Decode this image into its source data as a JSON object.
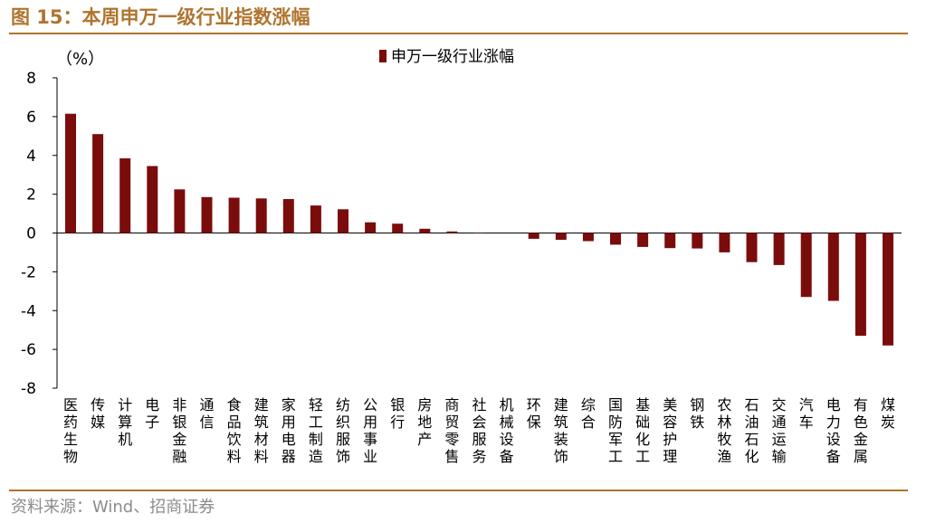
{
  "figure": {
    "title": "图 15：本周申万一级行业指数涨幅",
    "source": "资料来源：Wind、招商证券"
  },
  "chart_data": {
    "type": "bar",
    "title": "",
    "xlabel": "",
    "ylabel": "",
    "unit_label": "（%）",
    "ylim": [
      -8,
      8
    ],
    "yticks": [
      8,
      6,
      4,
      2,
      0,
      -2,
      -4,
      -6,
      -8
    ],
    "grid": false,
    "legend_position": "top-center",
    "bar_color": "#7b0c0c",
    "categories": [
      "医药生物",
      "传媒",
      "计算机",
      "电子",
      "非银金融",
      "通信",
      "食品饮料",
      "建筑材料",
      "家用电器",
      "轻工制造",
      "纺织服饰",
      "公用事业",
      "银行",
      "房地产",
      "商贸零售",
      "社会服务",
      "机械设备",
      "环保",
      "建筑装饰",
      "综合",
      "国防军工",
      "基础化工",
      "美容护理",
      "钢铁",
      "农林牧渔",
      "石油石化",
      "交通运输",
      "汽车",
      "电力设备",
      "有色金属",
      "煤炭"
    ],
    "series": [
      {
        "name": "申万一级行业涨幅",
        "values": [
          6.15,
          5.1,
          3.85,
          3.45,
          2.25,
          1.85,
          1.82,
          1.78,
          1.75,
          1.42,
          1.22,
          0.55,
          0.48,
          0.22,
          0.08,
          0.02,
          0.0,
          -0.3,
          -0.35,
          -0.42,
          -0.6,
          -0.72,
          -0.78,
          -0.8,
          -1.0,
          -1.5,
          -1.65,
          -3.3,
          -3.5,
          -5.3,
          -5.8
        ]
      }
    ]
  }
}
